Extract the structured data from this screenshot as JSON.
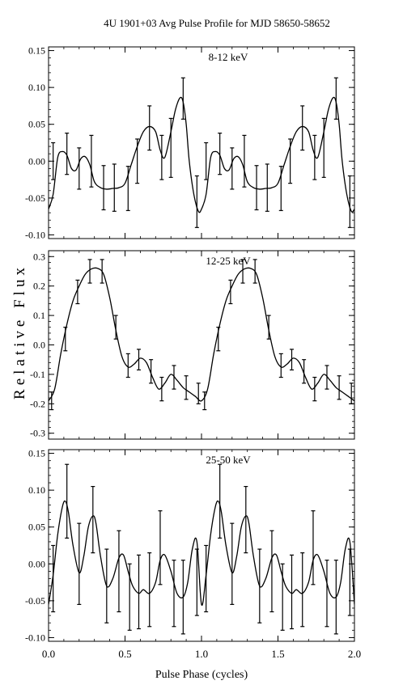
{
  "figure": {
    "title": "4U 1901+03 Avg Pulse Profile for MJD 58650-58652",
    "ylabel": "Relative Flux",
    "xlabel": "Pulse Phase (cycles)"
  },
  "chart_data": [
    {
      "type": "line",
      "label": "8-12 keV",
      "xlim": [
        0,
        2
      ],
      "ylim": [
        -0.105,
        0.155
      ],
      "xticks": [
        0.0,
        0.5,
        1.0,
        1.5,
        2.0
      ],
      "yticks": [
        -0.1,
        -0.05,
        0.0,
        0.05,
        0.1,
        0.15
      ],
      "ytick_labels": [
        "-0.10",
        "-0.05",
        "0.00",
        "0.05",
        "0.10",
        "0.15"
      ],
      "show_xtick_labels": false,
      "curve": {
        "x": [
          0.0,
          0.03,
          0.06,
          0.09,
          0.12,
          0.15,
          0.18,
          0.21,
          0.24,
          0.27,
          0.3,
          0.34,
          0.38,
          0.42,
          0.46,
          0.5,
          0.54,
          0.58,
          0.62,
          0.66,
          0.7,
          0.73,
          0.76,
          0.8,
          0.83,
          0.86,
          0.88,
          0.9,
          0.92,
          0.95,
          0.98,
          1.0
        ],
        "y": [
          -0.065,
          -0.045,
          0.005,
          0.013,
          0.008,
          -0.01,
          -0.012,
          0.003,
          0.006,
          -0.005,
          -0.028,
          -0.036,
          -0.038,
          -0.037,
          -0.036,
          -0.03,
          -0.005,
          0.02,
          0.04,
          0.047,
          0.04,
          0.015,
          0.005,
          0.04,
          0.07,
          0.086,
          0.08,
          0.05,
          0.0,
          -0.045,
          -0.068,
          -0.065
        ]
      },
      "points": {
        "x": [
          0.03,
          0.12,
          0.2,
          0.28,
          0.36,
          0.43,
          0.52,
          0.58,
          0.66,
          0.74,
          0.8,
          0.88,
          0.97
        ],
        "y": [
          0.0,
          0.01,
          -0.01,
          0.0,
          -0.036,
          -0.036,
          -0.037,
          0.0,
          0.045,
          0.005,
          0.018,
          0.085,
          -0.055
        ],
        "err": [
          0.025,
          0.028,
          0.028,
          0.035,
          0.03,
          0.032,
          0.03,
          0.03,
          0.03,
          0.03,
          0.04,
          0.028,
          0.035
        ]
      }
    },
    {
      "type": "line",
      "label": "12-25 keV",
      "xlim": [
        0,
        2
      ],
      "ylim": [
        -0.32,
        0.32
      ],
      "xticks": [
        0.0,
        0.5,
        1.0,
        1.5,
        2.0
      ],
      "yticks": [
        -0.3,
        -0.2,
        -0.1,
        0.0,
        0.1,
        0.2,
        0.3
      ],
      "ytick_labels": [
        "-0.3",
        "-0.2",
        "-0.1",
        "0.0",
        "0.1",
        "0.2",
        "0.3"
      ],
      "show_xtick_labels": false,
      "curve": {
        "x": [
          0.0,
          0.04,
          0.08,
          0.12,
          0.16,
          0.2,
          0.24,
          0.28,
          0.32,
          0.36,
          0.4,
          0.44,
          0.48,
          0.52,
          0.56,
          0.6,
          0.64,
          0.68,
          0.72,
          0.76,
          0.8,
          0.84,
          0.88,
          0.92,
          0.96,
          1.0
        ],
        "y": [
          -0.19,
          -0.15,
          -0.03,
          0.07,
          0.15,
          0.2,
          0.24,
          0.258,
          0.26,
          0.24,
          0.16,
          0.05,
          -0.04,
          -0.075,
          -0.065,
          -0.045,
          -0.06,
          -0.11,
          -0.15,
          -0.13,
          -0.1,
          -0.12,
          -0.145,
          -0.16,
          -0.175,
          -0.19
        ]
      },
      "points": {
        "x": [
          0.02,
          0.11,
          0.19,
          0.27,
          0.35,
          0.44,
          0.52,
          0.59,
          0.67,
          0.74,
          0.82,
          0.9,
          0.98
        ],
        "y": [
          -0.19,
          0.02,
          0.18,
          0.25,
          0.25,
          0.06,
          -0.07,
          -0.05,
          -0.09,
          -0.15,
          -0.11,
          -0.145,
          -0.165
        ],
        "err": [
          0.03,
          0.04,
          0.04,
          0.04,
          0.04,
          0.04,
          0.04,
          0.035,
          0.04,
          0.04,
          0.04,
          0.04,
          0.035
        ]
      }
    },
    {
      "type": "line",
      "label": "25-50 keV",
      "xlim": [
        0,
        2
      ],
      "ylim": [
        -0.105,
        0.155
      ],
      "xticks": [
        0.0,
        0.5,
        1.0,
        1.5,
        2.0
      ],
      "yticks": [
        -0.1,
        -0.05,
        0.0,
        0.05,
        0.1,
        0.15
      ],
      "ytick_labels": [
        "-0.10",
        "-0.05",
        "0.00",
        "0.05",
        "0.10",
        "0.15"
      ],
      "xtick_labels": [
        "0.0",
        "0.5",
        "1.0",
        "1.5",
        "2.0"
      ],
      "show_xtick_labels": true,
      "curve": {
        "x": [
          0.0,
          0.03,
          0.06,
          0.09,
          0.11,
          0.13,
          0.16,
          0.2,
          0.23,
          0.26,
          0.29,
          0.31,
          0.34,
          0.38,
          0.42,
          0.46,
          0.49,
          0.52,
          0.55,
          0.59,
          0.62,
          0.66,
          0.7,
          0.73,
          0.76,
          0.8,
          0.84,
          0.88,
          0.91,
          0.94,
          0.97,
          1.0
        ],
        "y": [
          -0.055,
          -0.015,
          0.04,
          0.077,
          0.085,
          0.07,
          0.025,
          -0.012,
          0.01,
          0.05,
          0.065,
          0.055,
          0.01,
          -0.03,
          -0.02,
          0.008,
          0.012,
          -0.01,
          -0.03,
          -0.04,
          -0.035,
          -0.04,
          -0.025,
          0.005,
          0.012,
          -0.01,
          -0.04,
          -0.045,
          -0.025,
          0.02,
          0.03,
          -0.055
        ]
      },
      "points": {
        "x": [
          0.03,
          0.12,
          0.2,
          0.29,
          0.38,
          0.46,
          0.53,
          0.59,
          0.66,
          0.73,
          0.82,
          0.88,
          0.97
        ],
        "y": [
          -0.02,
          0.085,
          0.0,
          0.06,
          -0.03,
          -0.01,
          -0.045,
          -0.038,
          -0.035,
          0.022,
          -0.04,
          -0.045,
          -0.025
        ],
        "err": [
          0.045,
          0.05,
          0.055,
          0.045,
          0.05,
          0.055,
          0.045,
          0.05,
          0.05,
          0.05,
          0.045,
          0.05,
          0.045
        ]
      }
    }
  ]
}
